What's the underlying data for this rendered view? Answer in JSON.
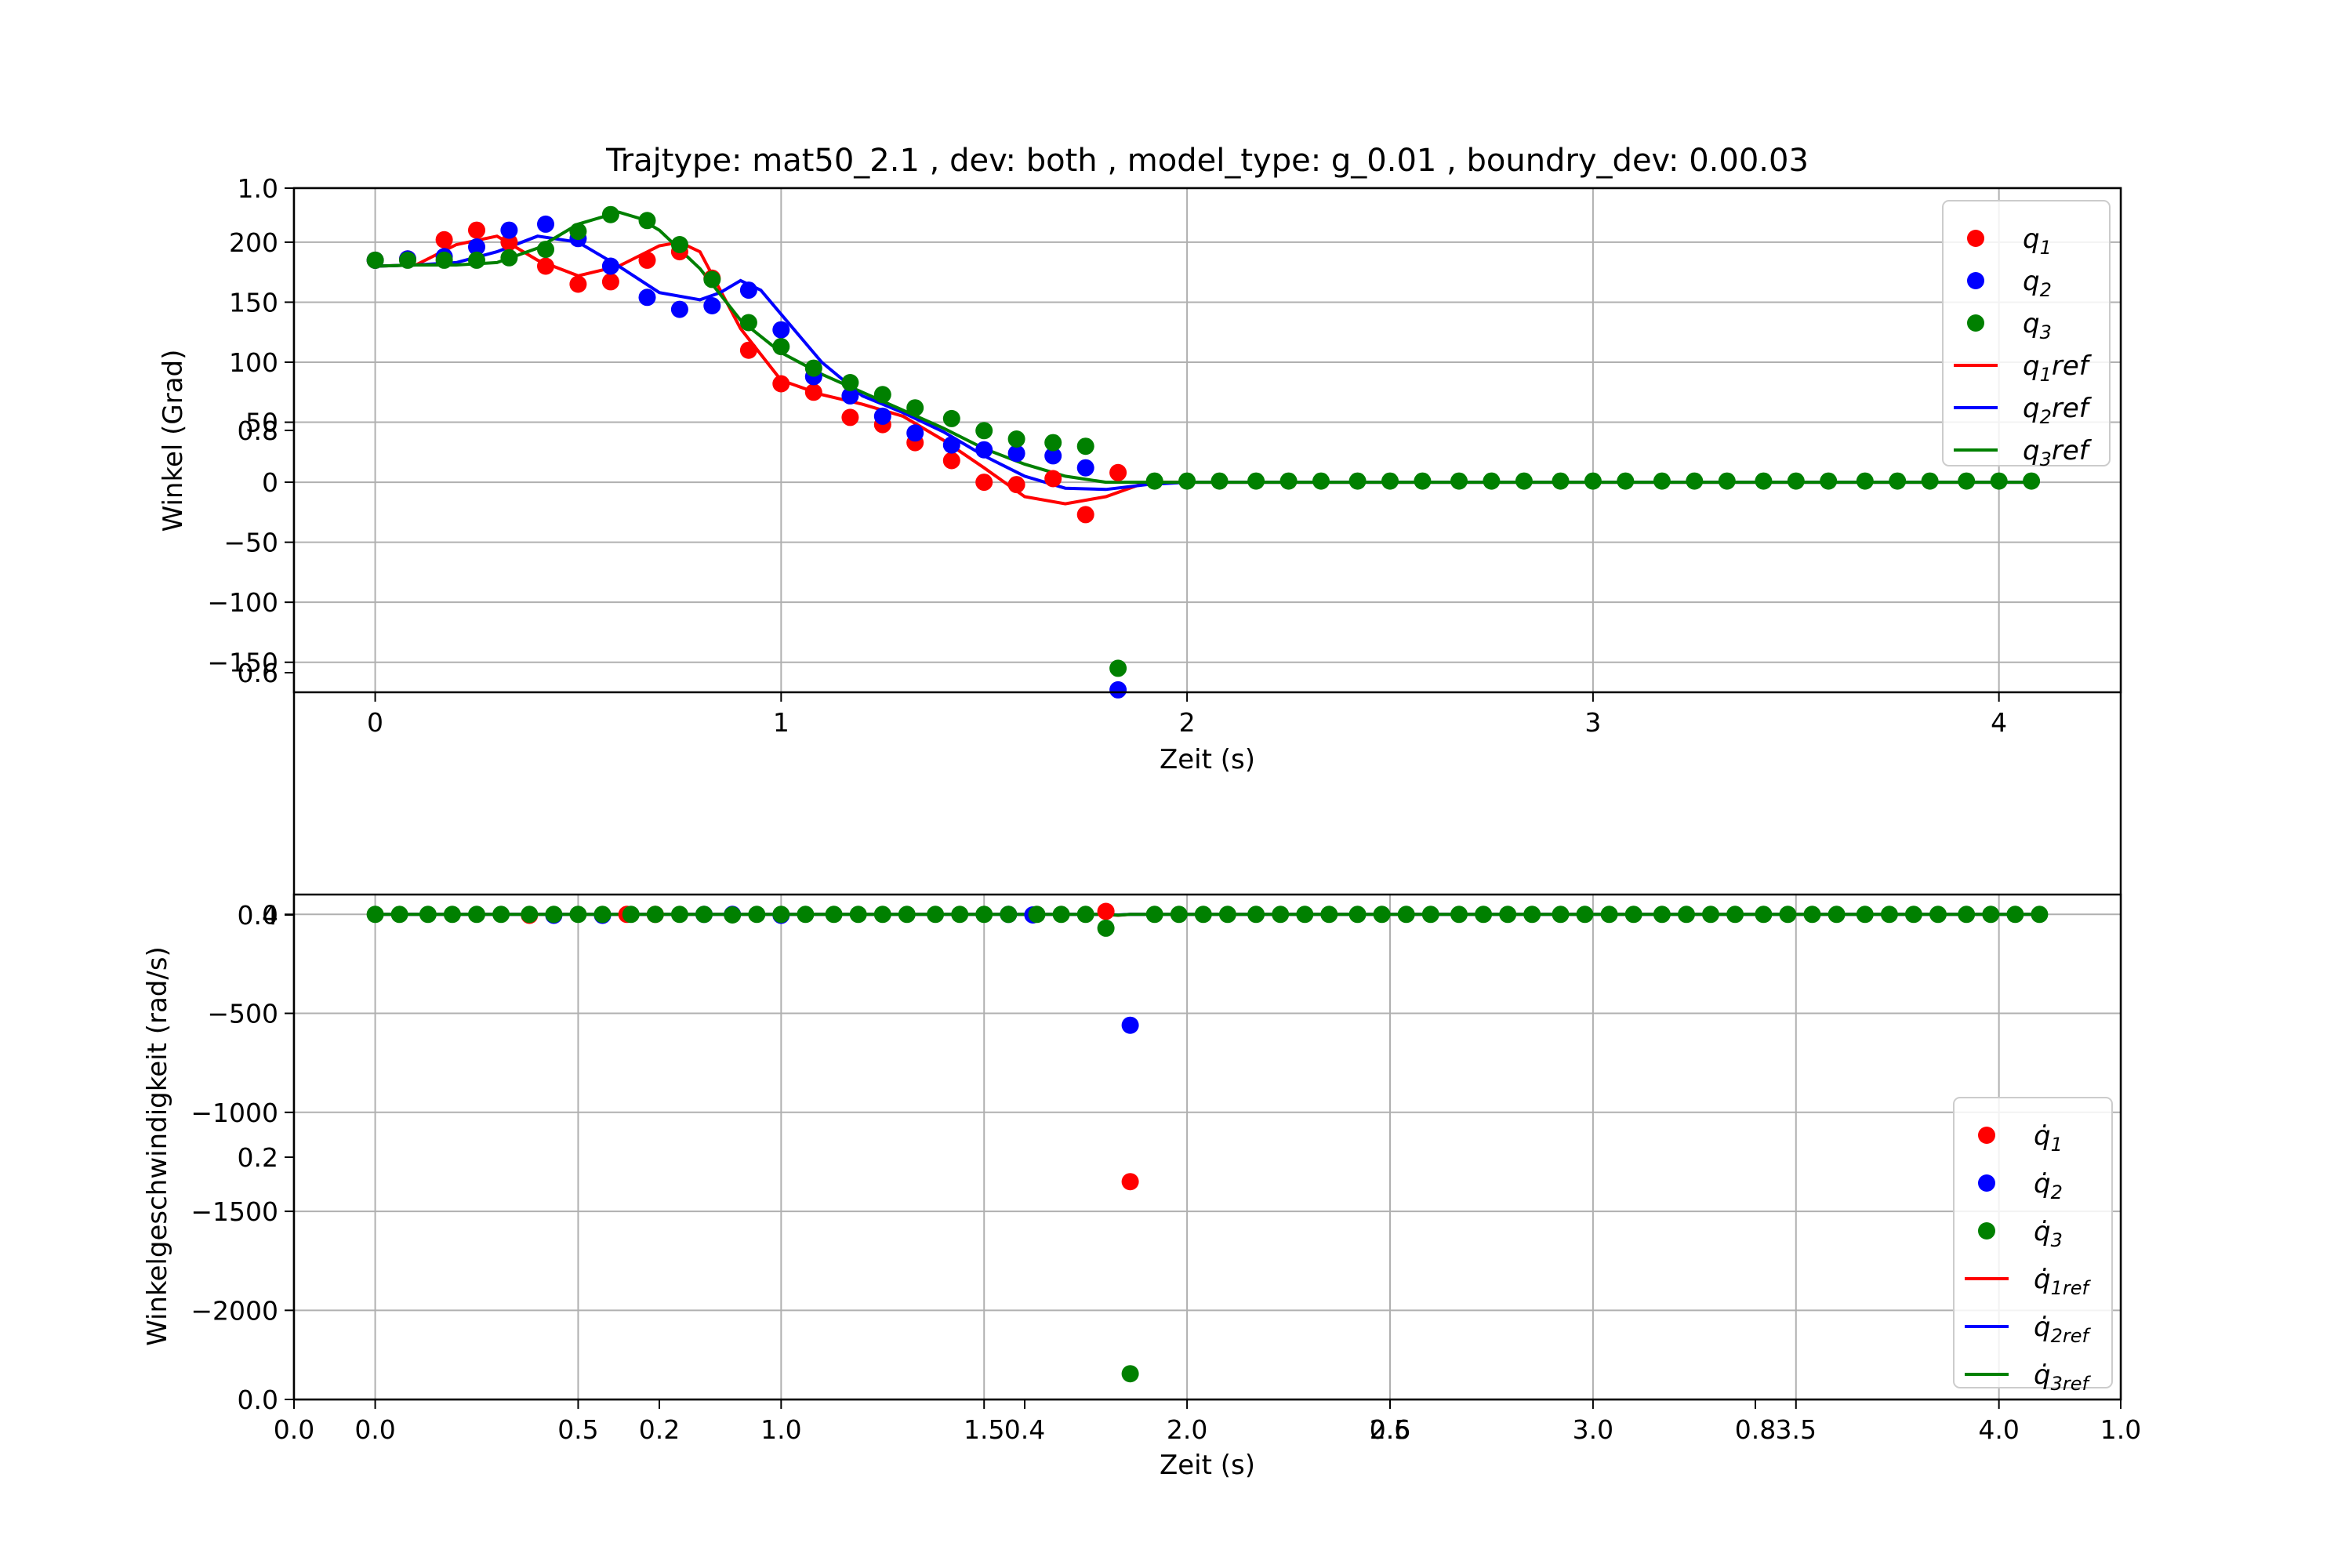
{
  "chart_data": {
    "title": "Trajtype: mat50_2.1 , dev: both , model_type: g_0.01 , boundry_dev: 0.00.03",
    "background_axes": {
      "xticks": [
        "0.0",
        "0.2",
        "0.4",
        "0.6",
        "0.8",
        "1.0"
      ],
      "yticks": [
        "0.2",
        "0.4",
        "0.6",
        "0.8",
        "1.0"
      ],
      "ytick_zero": "0.0"
    },
    "charts": [
      {
        "type": "scatter+line",
        "xlabel": "Zeit (s)",
        "ylabel": "Winkel (Grad)",
        "xlim": [
          -0.2,
          4.3
        ],
        "ylim": [
          -175,
          245
        ],
        "xticks": [
          "0",
          "1",
          "2",
          "3",
          "4"
        ],
        "yticks": [
          "−150",
          "−100",
          "−50",
          "0",
          "50",
          "100",
          "150",
          "200"
        ],
        "grid": true,
        "legend_position": "top-right",
        "legend": [
          {
            "kind": "marker",
            "text": "q",
            "sub": "1",
            "color": "#ff0000"
          },
          {
            "kind": "marker",
            "text": "q",
            "sub": "2",
            "color": "#0000ff"
          },
          {
            "kind": "marker",
            "text": "q",
            "sub": "3",
            "color": "#008000"
          },
          {
            "kind": "line",
            "text": "q",
            "sub": "1",
            "suffix": "ref",
            "color": "#ff0000"
          },
          {
            "kind": "line",
            "text": "q",
            "sub": "2",
            "suffix": "ref",
            "color": "#0000ff"
          },
          {
            "kind": "line",
            "text": "q",
            "sub": "3",
            "suffix": "ref",
            "color": "#008000"
          }
        ],
        "points": [
          {
            "color": "#ff0000",
            "x": [
              0,
              0.08,
              0.17,
              0.25,
              0.33,
              0.42,
              0.5,
              0.58,
              0.67,
              0.75,
              0.83,
              0.92,
              1.0,
              1.08,
              1.17,
              1.25,
              1.33,
              1.42,
              1.5,
              1.58,
              1.67,
              1.75,
              1.83
            ],
            "y": [
              185,
              186,
              202,
              210,
              200,
              180,
              165,
              167,
              185,
              192,
              170,
              110,
              82,
              75,
              54,
              48,
              33,
              18,
              0,
              -2,
              3,
              -27,
              8
            ]
          },
          {
            "color": "#0000ff",
            "x": [
              0,
              0.08,
              0.17,
              0.25,
              0.33,
              0.42,
              0.5,
              0.58,
              0.67,
              0.75,
              0.83,
              0.92,
              1.0,
              1.08,
              1.17,
              1.25,
              1.33,
              1.42,
              1.5,
              1.58,
              1.67,
              1.75,
              1.83
            ],
            "y": [
              185,
              186,
              188,
              196,
              210,
              215,
              203,
              180,
              154,
              144,
              147,
              160,
              127,
              88,
              72,
              55,
              41,
              31,
              27,
              24,
              22,
              12,
              -173
            ]
          },
          {
            "color": "#008000",
            "x": [
              0,
              0.08,
              0.17,
              0.25,
              0.33,
              0.42,
              0.5,
              0.58,
              0.67,
              0.75,
              0.83,
              0.92,
              1.0,
              1.08,
              1.17,
              1.25,
              1.33,
              1.42,
              1.5,
              1.58,
              1.67,
              1.75,
              1.83
            ],
            "y": [
              185,
              185,
              185,
              185,
              187,
              194,
              209,
              223,
              218,
              198,
              169,
              133,
              113,
              95,
              83,
              73,
              62,
              53,
              43,
              36,
              33,
              30,
              -155
            ]
          },
          {
            "color": "#008000",
            "x": [
              1.92,
              2.0,
              2.08,
              2.17,
              2.25,
              2.33,
              2.42,
              2.5,
              2.58,
              2.67,
              2.75,
              2.83,
              2.92,
              3.0,
              3.08,
              3.17,
              3.25,
              3.33,
              3.42,
              3.5,
              3.58,
              3.67,
              3.75,
              3.83,
              3.92,
              4.0,
              4.08
            ],
            "y": [
              1,
              1,
              1,
              1,
              1,
              1,
              1,
              1,
              1,
              1,
              1,
              1,
              1,
              1,
              1,
              1,
              1,
              1,
              1,
              1,
              1,
              1,
              1,
              1,
              1,
              1,
              1
            ]
          }
        ],
        "lines": [
          {
            "color": "#ff0000",
            "x": [
              0,
              0.1,
              0.2,
              0.3,
              0.4,
              0.5,
              0.6,
              0.7,
              0.75,
              0.8,
              0.9,
              1.0,
              1.1,
              1.2,
              1.3,
              1.4,
              1.5,
              1.6,
              1.7,
              1.8,
              1.9,
              2.0,
              4.1
            ],
            "y": [
              180,
              181,
              198,
              205,
              185,
              172,
              180,
              197,
              200,
              192,
              128,
              85,
              73,
              65,
              55,
              35,
              12,
              -12,
              -18,
              -12,
              0,
              0,
              0
            ]
          },
          {
            "color": "#0000ff",
            "x": [
              0,
              0.1,
              0.2,
              0.3,
              0.4,
              0.5,
              0.6,
              0.7,
              0.8,
              0.85,
              0.9,
              0.95,
              1.0,
              1.1,
              1.2,
              1.3,
              1.4,
              1.5,
              1.6,
              1.7,
              1.8,
              1.9,
              2.0,
              4.1
            ],
            "y": [
              180,
              181,
              183,
              192,
              205,
              200,
              180,
              158,
              152,
              158,
              168,
              160,
              140,
              100,
              72,
              58,
              42,
              22,
              5,
              -5,
              -6,
              -2,
              0,
              0
            ]
          },
          {
            "color": "#008000",
            "x": [
              0,
              0.1,
              0.2,
              0.3,
              0.4,
              0.5,
              0.6,
              0.65,
              0.7,
              0.8,
              0.9,
              1.0,
              1.1,
              1.2,
              1.3,
              1.4,
              1.5,
              1.6,
              1.7,
              1.8,
              1.9,
              2.0,
              4.1
            ],
            "y": [
              180,
              181,
              181,
              183,
              195,
              215,
              225,
              220,
              210,
              178,
              135,
              108,
              90,
              75,
              60,
              45,
              28,
              15,
              5,
              0,
              0,
              0,
              0
            ]
          }
        ]
      },
      {
        "type": "scatter+line",
        "xlabel": "Zeit (s)",
        "ylabel": "Winkelgeschwindigkeit (rad/s)",
        "xlim": [
          -0.2,
          4.3
        ],
        "ylim": [
          -2450,
          100
        ],
        "xticks": [
          "0.0",
          "0.5",
          "1.0",
          "1.5",
          "2.0",
          "2.5",
          "3.0",
          "3.5",
          "4.0"
        ],
        "yticks": [
          "−2000",
          "−1500",
          "−1000",
          "−500",
          "0"
        ],
        "grid": true,
        "legend_position": "lower-right",
        "legend": [
          {
            "kind": "marker",
            "text": "q̇",
            "sub": "1",
            "color": "#ff0000"
          },
          {
            "kind": "marker",
            "text": "q̇",
            "sub": "2",
            "color": "#0000ff"
          },
          {
            "kind": "marker",
            "text": "q̇",
            "sub": "3",
            "color": "#008000"
          },
          {
            "kind": "line",
            "text": "q̇",
            "sub": "1ref",
            "color": "#ff0000"
          },
          {
            "kind": "line",
            "text": "q̇",
            "sub": "2ref",
            "color": "#0000ff"
          },
          {
            "kind": "line",
            "text": "q̇",
            "sub": "3ref",
            "color": "#008000"
          }
        ],
        "points": [
          {
            "color": "#ff0000",
            "x": [
              0.38,
              0.62,
              0.69,
              1.8,
              1.86
            ],
            "y": [
              -5,
              0,
              0,
              15,
              -1350
            ]
          },
          {
            "color": "#0000ff",
            "x": [
              0.44,
              0.56,
              0.81,
              0.88,
              1.0,
              1.56,
              1.62,
              1.86
            ],
            "y": [
              -5,
              -5,
              0,
              0,
              -5,
              0,
              -3,
              -560
            ]
          },
          {
            "color": "#008000",
            "x": [
              0,
              0.06,
              0.13,
              0.19,
              0.25,
              0.31,
              0.38,
              0.44,
              0.5,
              0.56,
              0.63,
              0.69,
              0.75,
              0.81,
              0.88,
              0.94,
              1.0,
              1.06,
              1.13,
              1.19,
              1.25,
              1.31,
              1.38,
              1.44,
              1.5,
              1.56,
              1.63,
              1.69,
              1.75,
              1.8,
              1.86,
              1.92,
              1.98,
              2.04,
              2.1,
              2.17,
              2.23,
              2.29,
              2.35,
              2.42,
              2.48,
              2.54,
              2.6,
              2.67,
              2.73,
              2.79,
              2.85,
              2.92,
              2.98,
              3.04,
              3.1,
              3.17,
              3.23,
              3.29,
              3.35,
              3.42,
              3.48,
              3.54,
              3.6,
              3.67,
              3.73,
              3.79,
              3.85,
              3.92,
              3.98,
              4.04,
              4.1
            ],
            "y": [
              0,
              0,
              0,
              0,
              0,
              0,
              0,
              0,
              0,
              0,
              0,
              0,
              0,
              0,
              -3,
              0,
              0,
              0,
              0,
              0,
              0,
              0,
              0,
              0,
              0,
              0,
              0,
              0,
              0,
              -70,
              -2320,
              0,
              0,
              0,
              0,
              0,
              0,
              0,
              0,
              0,
              0,
              0,
              0,
              0,
              0,
              0,
              0,
              0,
              0,
              0,
              0,
              0,
              0,
              0,
              0,
              0,
              0,
              0,
              0,
              0,
              0,
              0,
              0,
              0,
              0,
              0,
              0
            ]
          }
        ],
        "lines": [
          {
            "color": "#ff0000",
            "x": [
              0,
              1.8,
              1.83,
              1.86,
              4.1
            ],
            "y": [
              0,
              0,
              -5,
              0,
              0
            ]
          },
          {
            "color": "#0000ff",
            "x": [
              0,
              1.8,
              1.83,
              1.86,
              4.1
            ],
            "y": [
              0,
              0,
              -3,
              0,
              0
            ]
          },
          {
            "color": "#008000",
            "x": [
              0,
              1.8,
              1.83,
              1.86,
              4.1
            ],
            "y": [
              0,
              0,
              -4,
              0,
              0
            ]
          }
        ]
      }
    ]
  }
}
